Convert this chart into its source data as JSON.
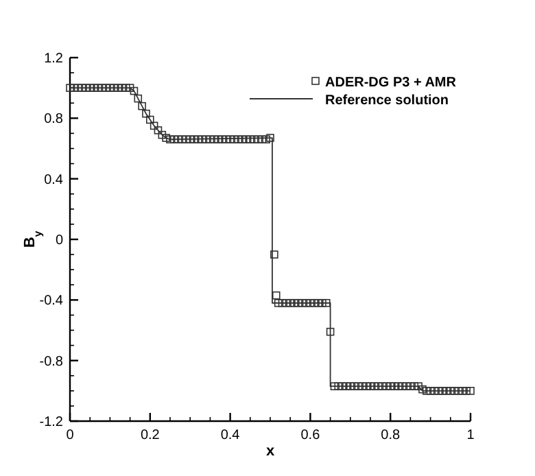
{
  "chart_data": {
    "type": "scatter",
    "xlabel": "x",
    "ylabel": "B$_{y}$",
    "xlim": [
      0,
      1
    ],
    "ylim": [
      -1.2,
      1.2
    ],
    "xticks": [
      0,
      {
        "value": 0.05,
        "label": null
      },
      {
        "value": 0.1,
        "label": null
      },
      {
        "value": 0.15,
        "label": null
      },
      0.2,
      {
        "value": 0.25,
        "label": null
      },
      {
        "value": 0.3,
        "label": null
      },
      {
        "value": 0.35,
        "label": null
      },
      0.4,
      {
        "value": 0.45,
        "label": null
      },
      {
        "value": 0.5,
        "label": null
      },
      {
        "value": 0.55,
        "label": null
      },
      0.6,
      {
        "value": 0.65,
        "label": null
      },
      {
        "value": 0.7,
        "label": null
      },
      {
        "value": 0.75,
        "label": null
      },
      0.8,
      {
        "value": 0.85,
        "label": null
      },
      {
        "value": 0.9,
        "label": null
      },
      {
        "value": 0.95,
        "label": null
      },
      1
    ],
    "yticks": [
      -1.2,
      {
        "value": -1.1,
        "label": null
      },
      {
        "value": -1,
        "label": null
      },
      {
        "value": -0.9,
        "label": null
      },
      -0.8,
      {
        "value": -0.7,
        "label": null
      },
      {
        "value": -0.6,
        "label": null
      },
      {
        "value": -0.5,
        "label": null
      },
      -0.4,
      {
        "value": -0.3,
        "label": null
      },
      {
        "value": -0.2,
        "label": null
      },
      {
        "value": -0.1,
        "label": null
      },
      0,
      {
        "value": 0.1,
        "label": null
      },
      {
        "value": 0.2,
        "label": null
      },
      {
        "value": 0.3,
        "label": null
      },
      0.4,
      {
        "value": 0.5,
        "label": null
      },
      {
        "value": 0.6,
        "label": null
      },
      {
        "value": 0.7,
        "label": null
      },
      0.8,
      {
        "value": 0.9,
        "label": null
      },
      {
        "value": 1,
        "label": null
      },
      {
        "value": 1.1,
        "label": null
      },
      1.2
    ],
    "grid": false,
    "legend": "top right",
    "series": [
      {
        "name": "ADER-DG P3 + AMR",
        "type": "scatter",
        "marker": "square",
        "color": "#333333",
        "x": [
          0,
          0.01,
          0.02,
          0.03,
          0.04,
          0.05,
          0.06,
          0.07,
          0.08,
          0.09,
          0.1,
          0.11,
          0.12,
          0.13,
          0.14,
          0.15,
          0.16,
          0.17,
          0.18,
          0.19,
          0.2,
          0.21,
          0.22,
          0.23,
          0.24,
          0.25,
          0.26,
          0.27,
          0.28,
          0.29,
          0.3,
          0.31,
          0.32,
          0.33,
          0.34,
          0.35,
          0.36,
          0.37,
          0.38,
          0.39,
          0.4,
          0.41,
          0.42,
          0.43,
          0.44,
          0.45,
          0.46,
          0.47,
          0.48,
          0.49,
          0.5,
          0.51,
          0.515,
          0.52,
          0.53,
          0.54,
          0.55,
          0.56,
          0.57,
          0.58,
          0.59,
          0.6,
          0.61,
          0.62,
          0.63,
          0.64,
          0.65,
          0.66,
          0.67,
          0.68,
          0.69,
          0.7,
          0.71,
          0.72,
          0.73,
          0.74,
          0.75,
          0.76,
          0.77,
          0.78,
          0.79,
          0.8,
          0.81,
          0.82,
          0.83,
          0.84,
          0.85,
          0.86,
          0.87,
          0.88,
          0.89,
          0.9,
          0.91,
          0.92,
          0.93,
          0.94,
          0.95,
          0.96,
          0.97,
          0.98,
          0.99,
          1
        ],
        "values": [
          1,
          1,
          1,
          1,
          1,
          1,
          1,
          1,
          1,
          1,
          1,
          1,
          1,
          1,
          1,
          1,
          0.98,
          0.93,
          0.88,
          0.83,
          0.79,
          0.75,
          0.72,
          0.69,
          0.67,
          0.66,
          0.66,
          0.66,
          0.66,
          0.66,
          0.66,
          0.66,
          0.66,
          0.66,
          0.66,
          0.66,
          0.66,
          0.66,
          0.66,
          0.66,
          0.66,
          0.66,
          0.66,
          0.66,
          0.66,
          0.66,
          0.66,
          0.66,
          0.66,
          0.66,
          0.67,
          -0.1,
          -0.37,
          -0.42,
          -0.42,
          -0.42,
          -0.42,
          -0.42,
          -0.42,
          -0.42,
          -0.42,
          -0.42,
          -0.42,
          -0.42,
          -0.42,
          -0.42,
          -0.61,
          -0.97,
          -0.97,
          -0.97,
          -0.97,
          -0.97,
          -0.97,
          -0.97,
          -0.97,
          -0.97,
          -0.97,
          -0.97,
          -0.97,
          -0.97,
          -0.97,
          -0.97,
          -0.97,
          -0.97,
          -0.97,
          -0.97,
          -0.97,
          -0.97,
          -0.97,
          -0.99,
          -1,
          -1,
          -1,
          -1,
          -1,
          -1,
          -1,
          -1,
          -1,
          -1,
          -1,
          -1
        ]
      },
      {
        "name": "Reference solution",
        "type": "line",
        "marker": "none",
        "line_style": "solid",
        "color": "#333333",
        "x": [
          0,
          0.15,
          0.16,
          0.17,
          0.18,
          0.19,
          0.2,
          0.21,
          0.22,
          0.23,
          0.24,
          0.25,
          0.5,
          0.505,
          0.505,
          0.65,
          0.65,
          0.87,
          0.88,
          1
        ],
        "values": [
          1,
          1,
          0.98,
          0.93,
          0.88,
          0.83,
          0.79,
          0.75,
          0.72,
          0.69,
          0.67,
          0.66,
          0.67,
          0.67,
          -0.42,
          -0.42,
          -0.97,
          -0.97,
          -1,
          -1
        ]
      }
    ]
  }
}
